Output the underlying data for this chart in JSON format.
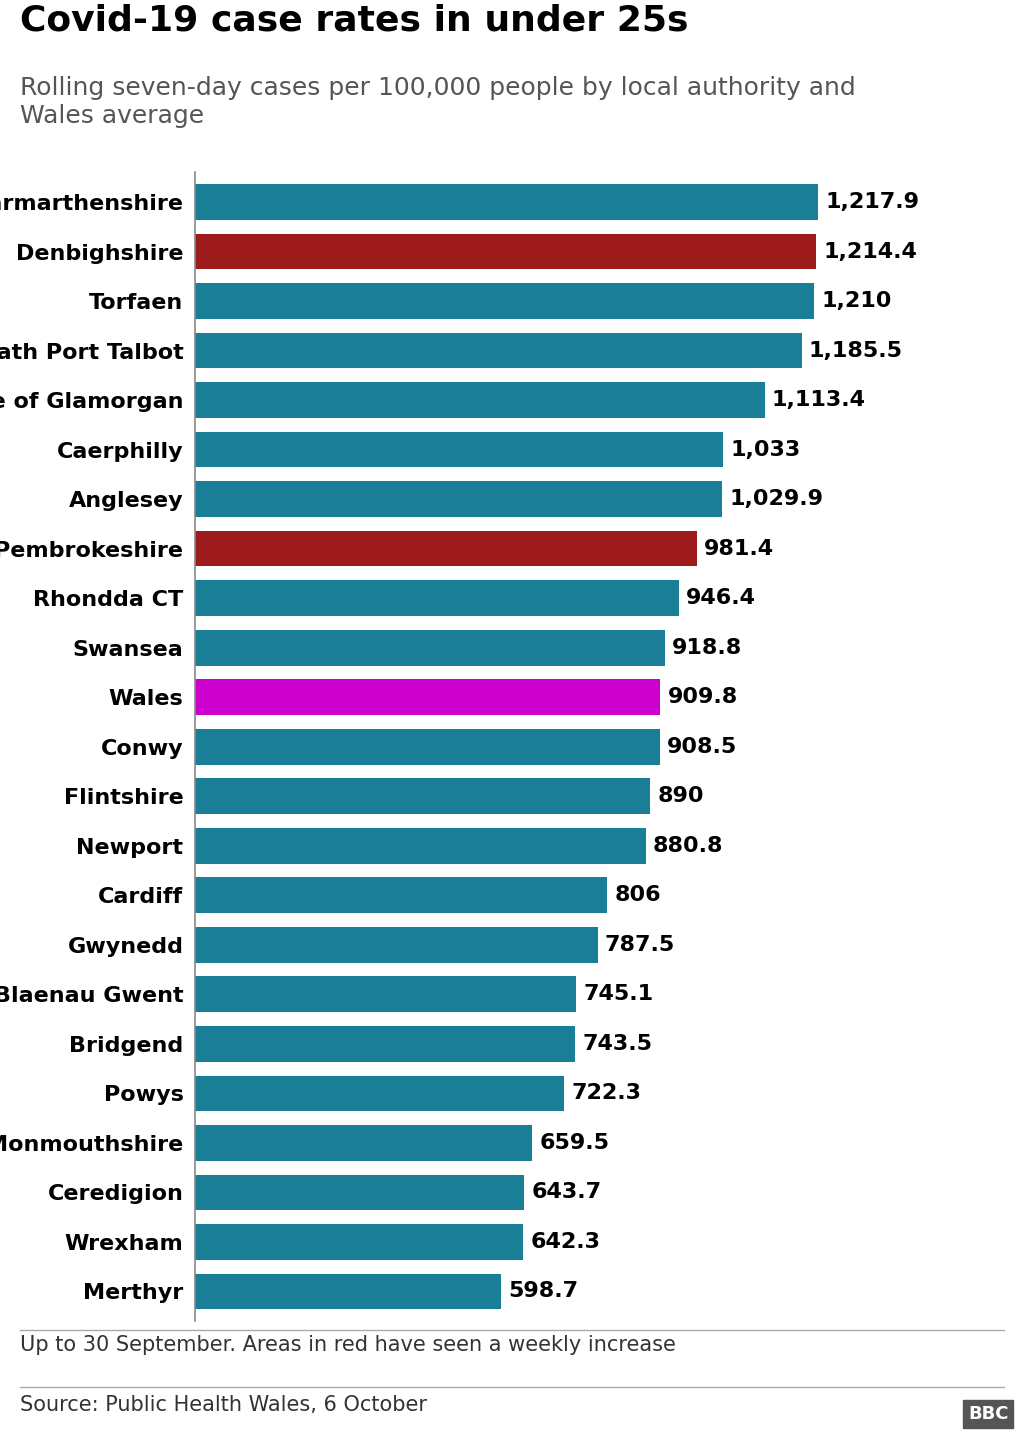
{
  "title": "Covid-19 case rates in under 25s",
  "subtitle": "Rolling seven-day cases per 100,000 people by local authority and\nWales average",
  "footnote": "Up to 30 September. Areas in red have seen a weekly increase",
  "source": "Source: Public Health Wales, 6 October",
  "categories": [
    "Carmarthenshire",
    "Denbighshire",
    "Torfaen",
    "Neath Port Talbot",
    "Vale of Glamorgan",
    "Caerphilly",
    "Anglesey",
    "Pembrokeshire",
    "Rhondda CT",
    "Swansea",
    "Wales",
    "Conwy",
    "Flintshire",
    "Newport",
    "Cardiff",
    "Gwynedd",
    "Blaenau Gwent",
    "Bridgend",
    "Powys",
    "Monmouthshire",
    "Ceredigion",
    "Wrexham",
    "Merthyr"
  ],
  "values": [
    1217.9,
    1214.4,
    1210,
    1185.5,
    1113.4,
    1033,
    1029.9,
    981.4,
    946.4,
    918.8,
    909.8,
    908.5,
    890,
    880.8,
    806,
    787.5,
    745.1,
    743.5,
    722.3,
    659.5,
    643.7,
    642.3,
    598.7
  ],
  "colors": [
    "#1a7f96",
    "#9e1b1b",
    "#1a7f96",
    "#1a7f96",
    "#1a7f96",
    "#1a7f96",
    "#1a7f96",
    "#9e1b1b",
    "#1a7f96",
    "#1a7f96",
    "#cc00cc",
    "#1a7f96",
    "#1a7f96",
    "#1a7f96",
    "#1a7f96",
    "#1a7f96",
    "#1a7f96",
    "#1a7f96",
    "#1a7f96",
    "#1a7f96",
    "#1a7f96",
    "#1a7f96",
    "#1a7f96"
  ],
  "value_labels": [
    "1,217.9",
    "1,214.4",
    "1,210",
    "1,185.5",
    "1,113.4",
    "1,033",
    "1,029.9",
    "981.4",
    "946.4",
    "918.8",
    "909.8",
    "908.5",
    "890",
    "880.8",
    "806",
    "787.5",
    "745.1",
    "743.5",
    "722.3",
    "659.5",
    "643.7",
    "642.3",
    "598.7"
  ],
  "background_color": "#ffffff",
  "title_fontsize": 26,
  "subtitle_fontsize": 18,
  "label_fontsize": 16,
  "value_fontsize": 16,
  "footnote_fontsize": 15,
  "source_fontsize": 15,
  "xlim": [
    0,
    1400
  ]
}
